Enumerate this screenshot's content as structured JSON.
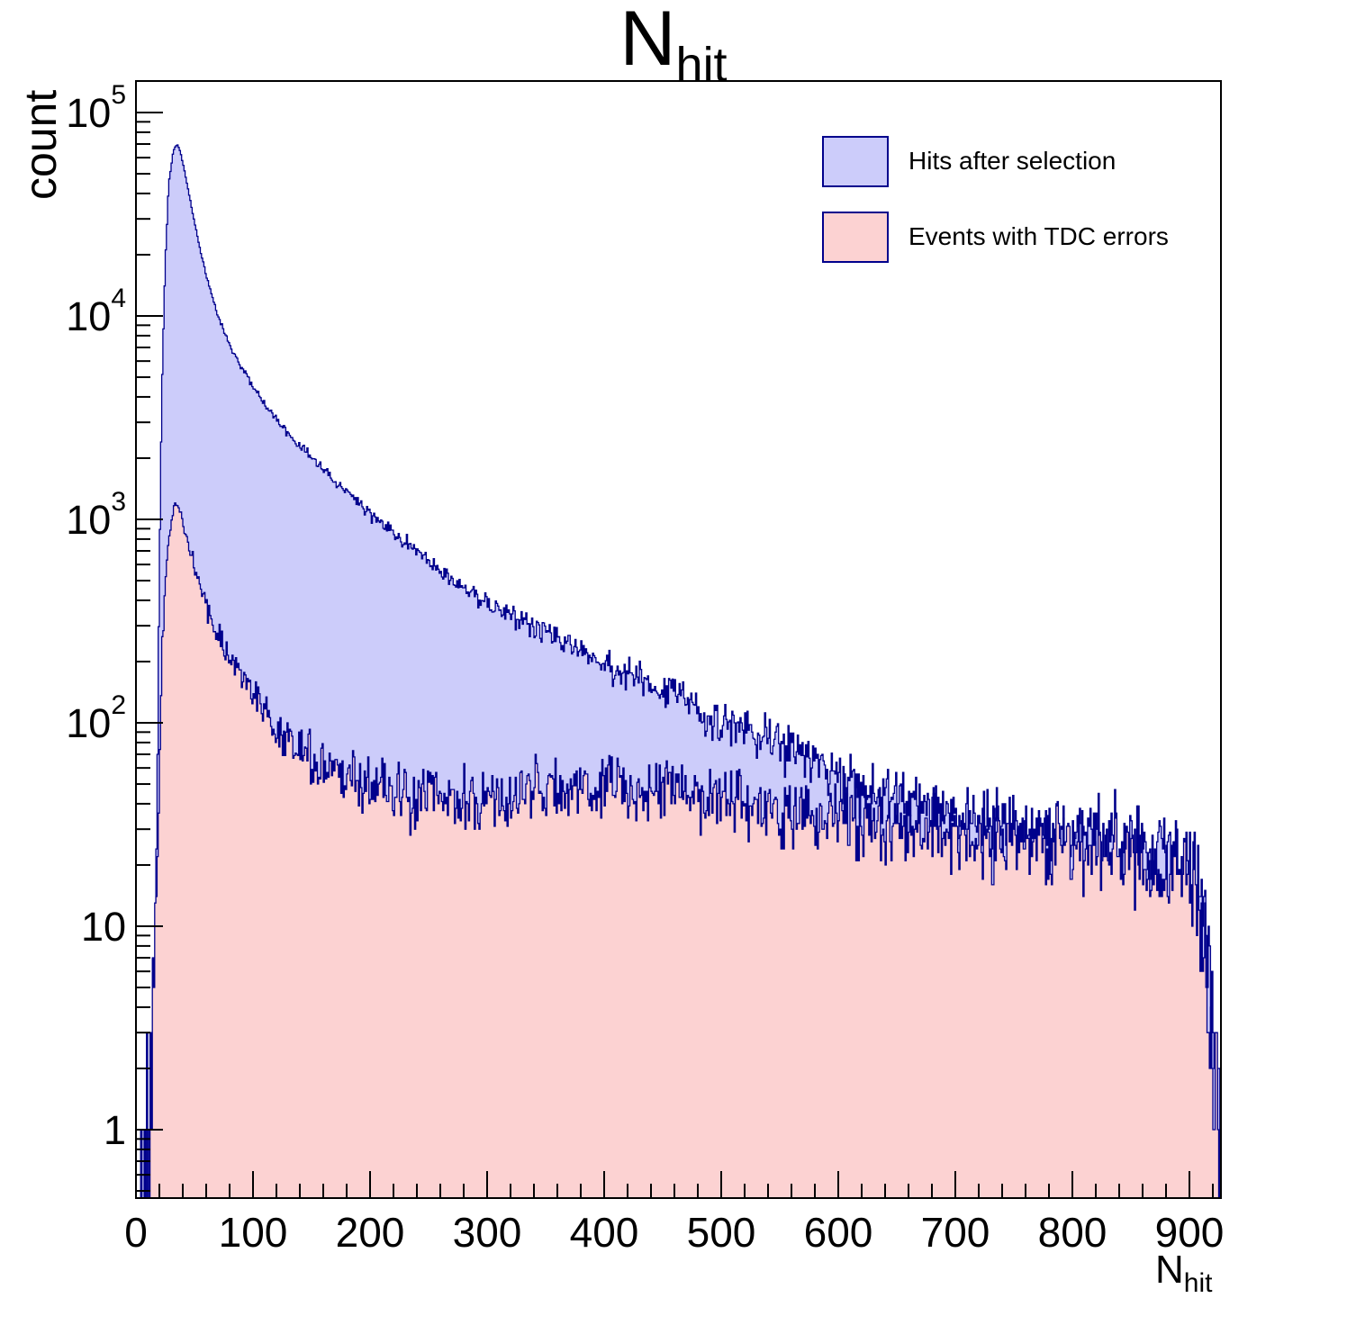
{
  "title": {
    "main": "N",
    "sub": "hit"
  },
  "axes": {
    "x": {
      "label_main": "N",
      "label_sub": "hit",
      "min": 0,
      "max": 927,
      "major_ticks": [
        0,
        100,
        200,
        300,
        400,
        500,
        600,
        700,
        800,
        900
      ],
      "minor_step": 20
    },
    "y": {
      "label": "count",
      "scale": "log",
      "min": 0.46,
      "max": 140000,
      "ticks": [
        {
          "v": 1,
          "label": "1"
        },
        {
          "v": 10,
          "label": "10"
        },
        {
          "v": 100,
          "label": "10",
          "exp": "2"
        },
        {
          "v": 1000,
          "label": "10",
          "exp": "3"
        },
        {
          "v": 10000,
          "label": "10",
          "exp": "4"
        },
        {
          "v": 100000,
          "label": "10",
          "exp": "5"
        }
      ]
    }
  },
  "legend": {
    "items": [
      {
        "label": "Hits after selection",
        "fill": "#ccccfa",
        "border": "#00008c"
      },
      {
        "label": "Events with TDC errors",
        "fill": "#fcd2d2",
        "border": "#00008c"
      }
    ]
  },
  "chart_data": {
    "type": "histogram",
    "title": "N_hit",
    "xlabel": "N_hit",
    "ylabel": "count",
    "x_range": [
      0,
      927
    ],
    "bin_width": 1,
    "y_scale": "log",
    "y_range": [
      0.46,
      140000
    ],
    "legend_position": "top-right",
    "series": [
      {
        "name": "Hits after selection",
        "fill": "#ccccfa",
        "line": "#00008c",
        "seed": 123457,
        "control_points": [
          [
            4,
            0.5
          ],
          [
            10,
            0.5
          ],
          [
            14,
            0.6
          ],
          [
            16,
            3
          ],
          [
            18,
            40
          ],
          [
            20,
            600
          ],
          [
            22,
            4000
          ],
          [
            25,
            18000
          ],
          [
            28,
            45000
          ],
          [
            32,
            65000
          ],
          [
            35,
            70000
          ],
          [
            38,
            64000
          ],
          [
            42,
            50000
          ],
          [
            46,
            38000
          ],
          [
            50,
            29000
          ],
          [
            55,
            21000
          ],
          [
            60,
            16000
          ],
          [
            70,
            10000
          ],
          [
            80,
            7200
          ],
          [
            90,
            5600
          ],
          [
            100,
            4500
          ],
          [
            110,
            3700
          ],
          [
            120,
            3100
          ],
          [
            135,
            2450
          ],
          [
            150,
            2000
          ],
          [
            170,
            1550
          ],
          [
            200,
            1050
          ],
          [
            230,
            780
          ],
          [
            260,
            560
          ],
          [
            300,
            390
          ],
          [
            340,
            290
          ],
          [
            380,
            225
          ],
          [
            420,
            175
          ],
          [
            460,
            140
          ],
          [
            500,
            100
          ],
          [
            540,
            82
          ],
          [
            570,
            70
          ],
          [
            600,
            52
          ],
          [
            630,
            46
          ],
          [
            660,
            41
          ],
          [
            700,
            34
          ],
          [
            740,
            31
          ],
          [
            780,
            28
          ],
          [
            820,
            26
          ],
          [
            860,
            24
          ],
          [
            900,
            20
          ],
          [
            908,
            16
          ],
          [
            912,
            11
          ],
          [
            916,
            7
          ],
          [
            920,
            3.5
          ],
          [
            924,
            1.6
          ],
          [
            927,
            1
          ]
        ]
      },
      {
        "name": "Events with TDC errors",
        "fill": "#fcd2d2",
        "line": "#00008c",
        "seed": 987651,
        "control_points": [
          [
            4,
            0.5
          ],
          [
            10,
            0.55
          ],
          [
            12,
            0.8
          ],
          [
            15,
            2
          ],
          [
            18,
            15
          ],
          [
            20,
            60
          ],
          [
            22,
            200
          ],
          [
            25,
            480
          ],
          [
            28,
            820
          ],
          [
            32,
            1100
          ],
          [
            35,
            1180
          ],
          [
            38,
            1060
          ],
          [
            42,
            860
          ],
          [
            46,
            690
          ],
          [
            50,
            565
          ],
          [
            55,
            455
          ],
          [
            60,
            375
          ],
          [
            70,
            268
          ],
          [
            80,
            207
          ],
          [
            90,
            167
          ],
          [
            100,
            136
          ],
          [
            110,
            113
          ],
          [
            120,
            96
          ],
          [
            135,
            79
          ],
          [
            150,
            66
          ],
          [
            170,
            56
          ],
          [
            200,
            48
          ],
          [
            230,
            44
          ],
          [
            260,
            42
          ],
          [
            300,
            44
          ],
          [
            340,
            46
          ],
          [
            380,
            48
          ],
          [
            420,
            48
          ],
          [
            460,
            45
          ],
          [
            500,
            42
          ],
          [
            540,
            38
          ],
          [
            570,
            36
          ],
          [
            600,
            34
          ],
          [
            630,
            31
          ],
          [
            660,
            30
          ],
          [
            700,
            28
          ],
          [
            740,
            26
          ],
          [
            780,
            24
          ],
          [
            820,
            23
          ],
          [
            860,
            21
          ],
          [
            900,
            18
          ],
          [
            908,
            14
          ],
          [
            912,
            10
          ],
          [
            916,
            6
          ],
          [
            920,
            3
          ],
          [
            924,
            1.4
          ],
          [
            927,
            0.8
          ]
        ]
      }
    ]
  }
}
